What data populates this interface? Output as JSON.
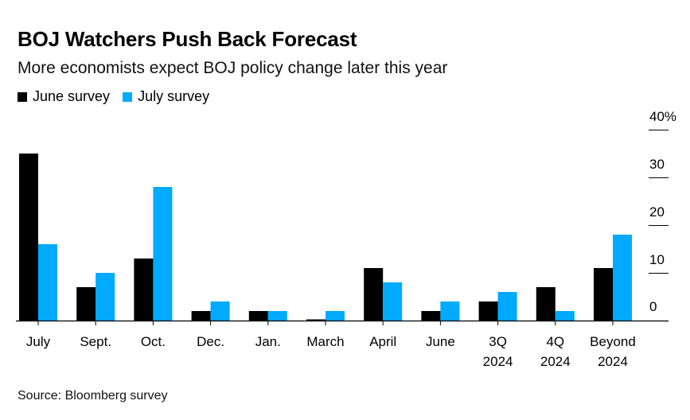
{
  "title": "BOJ Watchers Push Back Forecast",
  "subtitle": "More economists expect BOJ policy change later this year",
  "source": "Source: Bloomberg survey",
  "chart_data": {
    "type": "bar",
    "categories": [
      [
        "July"
      ],
      [
        "Sept."
      ],
      [
        "Oct."
      ],
      [
        "Dec."
      ],
      [
        "Jan."
      ],
      [
        "March"
      ],
      [
        "April"
      ],
      [
        "June"
      ],
      [
        "3Q",
        "2024"
      ],
      [
        "4Q",
        "2024"
      ],
      [
        "Beyond",
        "2024"
      ]
    ],
    "series": [
      {
        "name": "June survey",
        "color": "#000000",
        "values": [
          35,
          7,
          13,
          2,
          2,
          0,
          11,
          2,
          4,
          7,
          11
        ]
      },
      {
        "name": "July survey",
        "color": "#00aaff",
        "values": [
          16,
          10,
          28,
          4,
          2,
          2,
          8,
          4,
          6,
          2,
          18
        ]
      }
    ],
    "ylim": [
      0,
      40
    ],
    "yticks": [
      0,
      10,
      20,
      30,
      40
    ],
    "ytick_labels": [
      "0",
      "10",
      "20",
      "30",
      "40%"
    ],
    "y_axis_position": "right",
    "grid": false
  }
}
